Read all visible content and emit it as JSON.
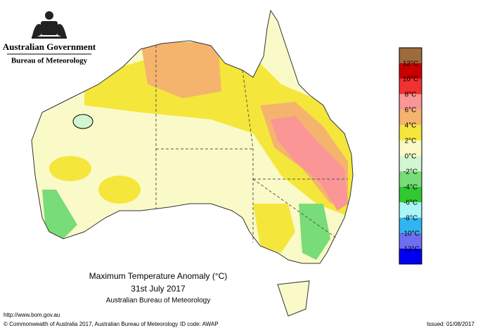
{
  "header": {
    "agency": "Australian Government",
    "bureau": "Bureau of Meteorology"
  },
  "map": {
    "title": "Maximum Temperature Anomaly (°C)",
    "date": "31st July 2017",
    "source": "Australian Bureau of Meteorology"
  },
  "legend": {
    "items": [
      {
        "color": "#9c6b3e"
      },
      {
        "color": "#c80000",
        "label": "12°C"
      },
      {
        "color": "#f03232",
        "label": "10°C"
      },
      {
        "color": "#fa9696",
        "label": "8°C"
      },
      {
        "color": "#f5b46e",
        "label": "6°C"
      },
      {
        "color": "#f5e63c",
        "label": "4°C"
      },
      {
        "color": "#fafac8",
        "label": "2°C"
      },
      {
        "color": "#d2f5d2",
        "label": "0°C"
      },
      {
        "color": "#78dc78",
        "label": "-2°C"
      },
      {
        "color": "#32c832",
        "label": "-4°C"
      },
      {
        "color": "#aaf5f5",
        "label": "-6°C"
      },
      {
        "color": "#32b4f0",
        "label": "-8°C"
      },
      {
        "color": "#6e6ef0",
        "label": "-10°C"
      },
      {
        "color": "#0000f0",
        "label": "-12°C"
      }
    ]
  },
  "footer": {
    "url": "http://www.bom.gov.au",
    "copyright": "© Commonwealth of Australia 2017, Australian Bureau of Meteorology",
    "id_code": "ID code: AWAP",
    "issued": "Issued: 01/08/2017"
  }
}
